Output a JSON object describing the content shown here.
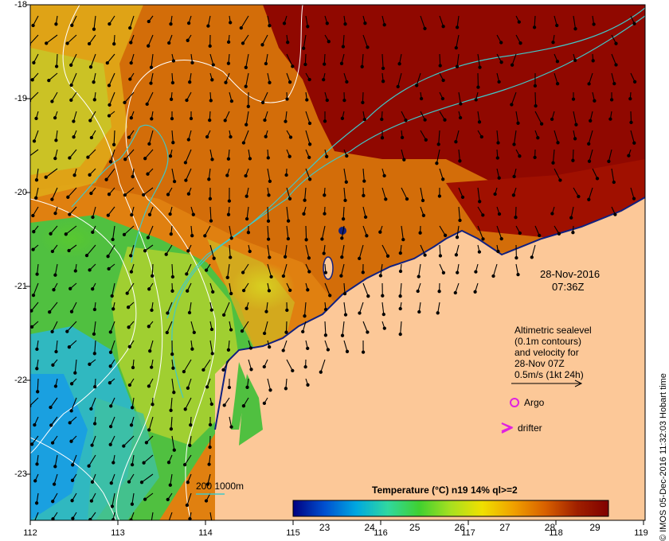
{
  "map": {
    "lon_ticks": [
      "112",
      "113",
      "114",
      "115",
      "116",
      "117",
      "118",
      "119"
    ],
    "lat_ticks": [
      "-18",
      "-19",
      "-20",
      "-21",
      "-22",
      "-23"
    ],
    "date": "28-Nov-2016",
    "time": "07:36Z",
    "stamp": "© IMOS 05-Dec-2016 11:32:03 Hobart time"
  },
  "legend": {
    "lines": [
      "Altimetric sealevel",
      "(0.1m contours)",
      "and velocity for",
      "28-Nov 07Z",
      "0.5m/s (1kt 24h)"
    ],
    "argo": "Argo",
    "drifter": "drifter",
    "isobaths": "200  1000m",
    "argo_color": "#e020e0",
    "drifter_color": "#e020e0",
    "isobath_color": "#40c8c8",
    "land_color": "#fcc898"
  },
  "colorbar": {
    "title": "Temperature (°C) n19 14% ql>=2",
    "ticks": [
      "23",
      "24",
      "25",
      "26",
      "27",
      "28",
      "29"
    ],
    "min": 22.3,
    "max": 29.3,
    "colors": [
      "#000080",
      "#0050d0",
      "#00a8e0",
      "#30d8a0",
      "#40d030",
      "#a8e020",
      "#f0e000",
      "#f0a000",
      "#d86000",
      "#a02000",
      "#800000"
    ]
  }
}
